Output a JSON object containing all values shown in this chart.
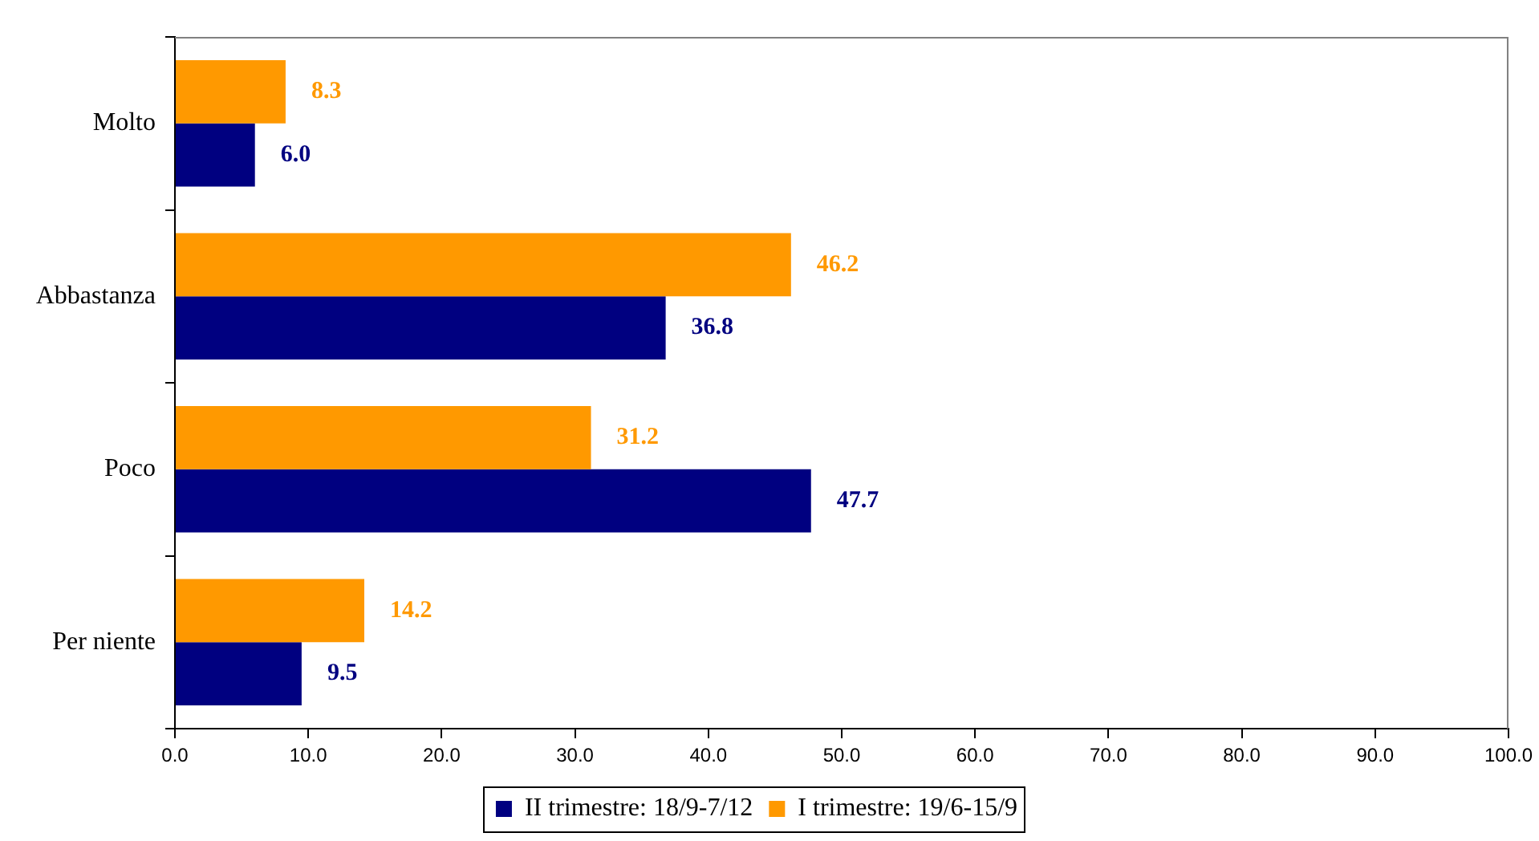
{
  "chart_data": {
    "type": "bar",
    "orientation": "horizontal",
    "categories": [
      "Molto",
      "Abbastanza",
      "Poco",
      "Per niente"
    ],
    "series": [
      {
        "name": "II trimestre: 18/9-7/12",
        "color": "#000080",
        "values": [
          6.0,
          36.8,
          47.7,
          9.5
        ],
        "value_labels": [
          "6.0",
          "36.8",
          "47.7",
          "9.5"
        ]
      },
      {
        "name": "I trimestre: 19/6-15/9",
        "color": "#ff9900",
        "values": [
          8.3,
          46.2,
          31.2,
          14.2
        ],
        "value_labels": [
          "8.3",
          "46.2",
          "31.2",
          "14.2"
        ]
      }
    ],
    "xlim": [
      0,
      100
    ],
    "xticks": [
      {
        "value": 0,
        "label": "0.0"
      },
      {
        "value": 10,
        "label": "10.0"
      },
      {
        "value": 20,
        "label": "20.0"
      },
      {
        "value": 30,
        "label": "30.0"
      },
      {
        "value": 40,
        "label": "40.0"
      },
      {
        "value": 50,
        "label": "50.0"
      },
      {
        "value": 60,
        "label": "60.0"
      },
      {
        "value": 70,
        "label": "70.0"
      },
      {
        "value": 80,
        "label": "80.0"
      },
      {
        "value": 90,
        "label": "90.0"
      },
      {
        "value": 100,
        "label": "100.0"
      }
    ],
    "grid": false,
    "legend": "bottom"
  }
}
